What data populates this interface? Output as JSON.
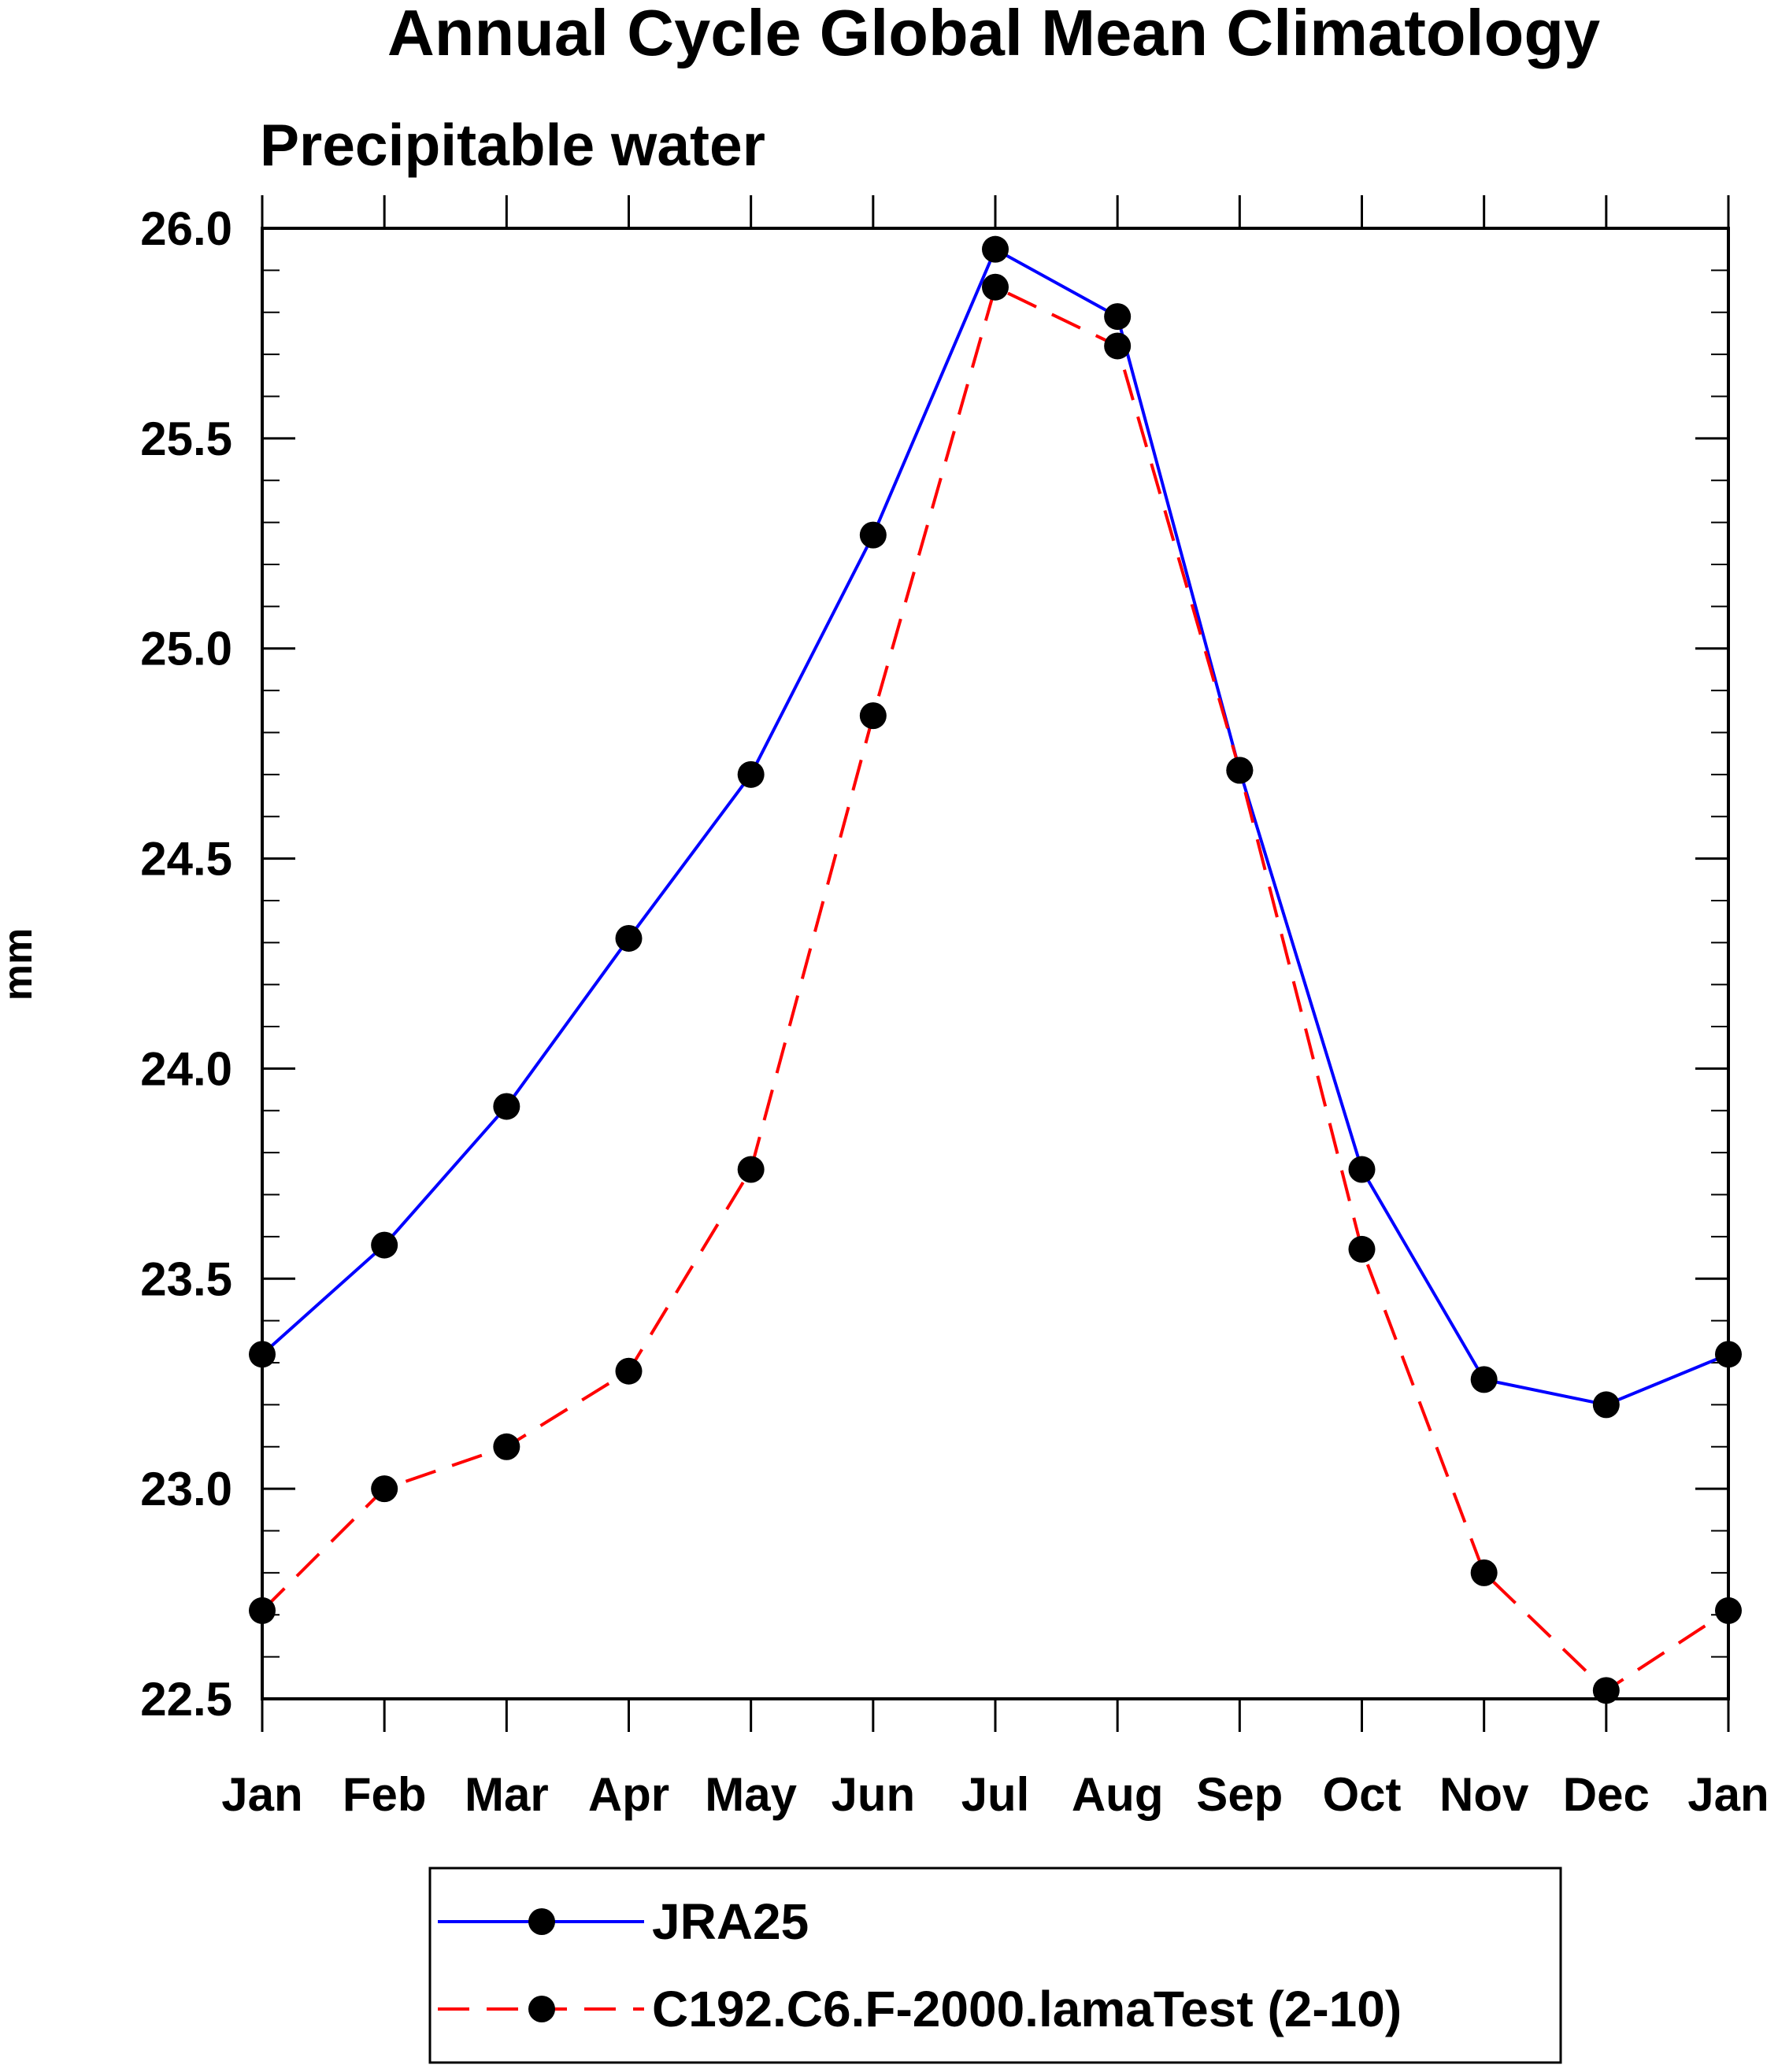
{
  "chart_data": {
    "type": "line",
    "title": "Annual Cycle Global Mean Climatology",
    "subtitle": "Precipitable water",
    "xlabel": "",
    "ylabel": "mm",
    "categories": [
      "Jan",
      "Feb",
      "Mar",
      "Apr",
      "May",
      "Jun",
      "Jul",
      "Aug",
      "Sep",
      "Oct",
      "Nov",
      "Dec",
      "Jan"
    ],
    "ylim": [
      22.5,
      26.0
    ],
    "yticks": [
      22.5,
      23.0,
      23.5,
      24.0,
      24.5,
      25.0,
      25.5,
      26.0
    ],
    "ytick_labels": [
      "22.5",
      "23.0",
      "23.5",
      "24.0",
      "24.5",
      "25.0",
      "25.5",
      "26.0"
    ],
    "grid": false,
    "legend_position": "bottom",
    "series": [
      {
        "name": "JRA25",
        "color": "#0000ff",
        "line_style": "solid",
        "marker": "filled-circle",
        "values": [
          23.32,
          23.58,
          23.91,
          24.31,
          24.7,
          25.27,
          25.95,
          25.79,
          24.71,
          23.76,
          23.26,
          23.2,
          23.32
        ]
      },
      {
        "name": "C192.C6.F-2000.lamaTest (2-10)",
        "color": "#ff0000",
        "line_style": "dashed",
        "marker": "filled-circle",
        "values": [
          22.71,
          23.0,
          23.1,
          23.28,
          23.76,
          24.84,
          25.86,
          25.72,
          24.71,
          23.57,
          22.8,
          22.52,
          22.71
        ]
      }
    ]
  }
}
